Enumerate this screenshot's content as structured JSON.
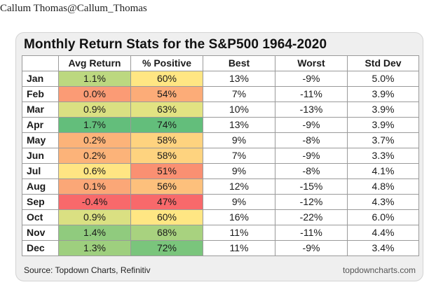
{
  "post": {
    "author": "Callum Thomas@Callum_Thomas"
  },
  "footer": {
    "source": "Source: Topdown Charts, Refinitiv",
    "watermark": "topdowncharts.com"
  },
  "chart_data": {
    "type": "table",
    "title": "Monthly Return Stats for the S&P500  1964-2020",
    "columns": [
      "",
      "Avg Return",
      "% Positive",
      "Best",
      "Worst",
      "Std Dev"
    ],
    "rows": [
      {
        "month": "Jan",
        "avg_return": "1.1%",
        "pct_positive": "60%",
        "best": "13%",
        "worst": "-9%",
        "std_dev": "5.0%"
      },
      {
        "month": "Feb",
        "avg_return": "0.0%",
        "pct_positive": "54%",
        "best": "7%",
        "worst": "-11%",
        "std_dev": "3.9%"
      },
      {
        "month": "Mar",
        "avg_return": "0.9%",
        "pct_positive": "63%",
        "best": "10%",
        "worst": "-13%",
        "std_dev": "3.9%"
      },
      {
        "month": "Apr",
        "avg_return": "1.7%",
        "pct_positive": "74%",
        "best": "13%",
        "worst": "-9%",
        "std_dev": "3.9%"
      },
      {
        "month": "May",
        "avg_return": "0.2%",
        "pct_positive": "58%",
        "best": "9%",
        "worst": "-8%",
        "std_dev": "3.7%"
      },
      {
        "month": "Jun",
        "avg_return": "0.2%",
        "pct_positive": "58%",
        "best": "7%",
        "worst": "-9%",
        "std_dev": "3.3%"
      },
      {
        "month": "Jul",
        "avg_return": "0.6%",
        "pct_positive": "51%",
        "best": "9%",
        "worst": "-8%",
        "std_dev": "4.1%"
      },
      {
        "month": "Aug",
        "avg_return": "0.1%",
        "pct_positive": "56%",
        "best": "12%",
        "worst": "-15%",
        "std_dev": "4.8%"
      },
      {
        "month": "Sep",
        "avg_return": "-0.4%",
        "pct_positive": "47%",
        "best": "9%",
        "worst": "-12%",
        "std_dev": "4.3%"
      },
      {
        "month": "Oct",
        "avg_return": "0.9%",
        "pct_positive": "60%",
        "best": "16%",
        "worst": "-22%",
        "std_dev": "6.0%"
      },
      {
        "month": "Nov",
        "avg_return": "1.4%",
        "pct_positive": "68%",
        "best": "11%",
        "worst": "-11%",
        "std_dev": "4.4%"
      },
      {
        "month": "Dec",
        "avg_return": "1.3%",
        "pct_positive": "72%",
        "best": "11%",
        "worst": "-9%",
        "std_dev": "3.4%"
      }
    ],
    "heatmap": {
      "columns": [
        "Avg Return",
        "% Positive"
      ],
      "scale": "red-yellow-green",
      "colors": {
        "low": "#f8696b",
        "mid": "#ffeb84",
        "high": "#63be7b"
      }
    }
  }
}
